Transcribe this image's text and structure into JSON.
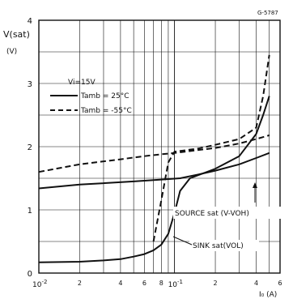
{
  "chart_data": {
    "type": "line",
    "figure_code": "G-5787",
    "ylabel": "V(sat)",
    "ylabel_unit": "(V)",
    "xlabel": "I₀ (A)",
    "x_scale": "log",
    "xlim": [
      0.01,
      0.6
    ],
    "ylim": [
      0,
      4
    ],
    "x_ticks": [
      {
        "value": 0.01,
        "base": "10",
        "exp": "-2"
      },
      {
        "value": 0.02,
        "label": "2"
      },
      {
        "value": 0.04,
        "label": "4"
      },
      {
        "value": 0.06,
        "label": "6"
      },
      {
        "value": 0.08,
        "label": "8"
      },
      {
        "value": 0.1,
        "base": "10",
        "exp": "-1"
      },
      {
        "value": 0.2,
        "label": "2"
      },
      {
        "value": 0.4,
        "label": "4"
      },
      {
        "value": 0.6,
        "label": "6"
      }
    ],
    "y_ticks": [
      {
        "value": 0,
        "label": "0"
      },
      {
        "value": 1,
        "label": "1"
      },
      {
        "value": 2,
        "label": "2"
      },
      {
        "value": 3,
        "label": "3"
      },
      {
        "value": 4,
        "label": "4"
      }
    ],
    "conditions": "Vi=15V",
    "legend": [
      {
        "style": "solid",
        "label": "Tamb = 25°C"
      },
      {
        "style": "dashed",
        "label": "Tamb = -55°C"
      }
    ],
    "annotations": [
      {
        "label": "SOURCE sat (V-VOH)"
      },
      {
        "label": "SINK sat(VOL)"
      }
    ],
    "series": [
      {
        "style": "solid",
        "x": [
          0.01,
          0.02,
          0.05,
          0.08,
          0.11,
          0.15,
          0.2,
          0.3,
          0.4,
          0.5
        ],
        "y": [
          1.34,
          1.4,
          1.45,
          1.48,
          1.5,
          1.56,
          1.62,
          1.72,
          1.82,
          1.9
        ]
      },
      {
        "style": "solid",
        "x": [
          0.01,
          0.02,
          0.03,
          0.04,
          0.05,
          0.06,
          0.07,
          0.08,
          0.09,
          0.1,
          0.11,
          0.13,
          0.15,
          0.2,
          0.3,
          0.4,
          0.45,
          0.5
        ],
        "y": [
          0.17,
          0.18,
          0.2,
          0.22,
          0.26,
          0.3,
          0.36,
          0.45,
          0.62,
          0.95,
          1.3,
          1.5,
          1.55,
          1.65,
          1.85,
          2.2,
          2.5,
          2.8
        ]
      },
      {
        "style": "dashed",
        "x": [
          0.01,
          0.02,
          0.04,
          0.06,
          0.08,
          0.1,
          0.2,
          0.3,
          0.4,
          0.5
        ],
        "y": [
          1.6,
          1.72,
          1.8,
          1.85,
          1.88,
          1.9,
          1.98,
          2.05,
          2.12,
          2.18
        ]
      },
      {
        "style": "dashed",
        "x": [
          0.07,
          0.08,
          0.09,
          0.1,
          0.15,
          0.2,
          0.3,
          0.4,
          0.45,
          0.5
        ],
        "y": [
          0.5,
          1.15,
          1.75,
          1.92,
          1.97,
          2.03,
          2.12,
          2.3,
          2.8,
          3.45
        ]
      }
    ]
  }
}
